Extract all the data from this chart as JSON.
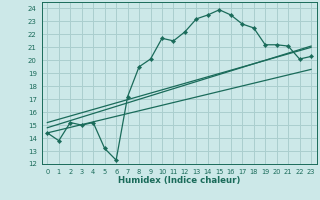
{
  "xlabel": "Humidex (Indice chaleur)",
  "bg_color": "#cce8e8",
  "grid_color": "#aacece",
  "line_color": "#1a6b5a",
  "xlim": [
    -0.5,
    23.5
  ],
  "ylim": [
    12,
    24.5
  ],
  "yticks": [
    12,
    13,
    14,
    15,
    16,
    17,
    18,
    19,
    20,
    21,
    22,
    23,
    24
  ],
  "xticks": [
    0,
    1,
    2,
    3,
    4,
    5,
    6,
    7,
    8,
    9,
    10,
    11,
    12,
    13,
    14,
    15,
    16,
    17,
    18,
    19,
    20,
    21,
    22,
    23
  ],
  "line1_x": [
    0,
    1,
    2,
    3,
    4,
    5,
    6,
    7,
    8,
    9,
    10,
    11,
    12,
    13,
    14,
    15,
    16,
    17,
    18,
    19,
    20,
    21,
    22,
    23
  ],
  "line1_y": [
    14.4,
    13.8,
    15.2,
    15.0,
    15.2,
    13.2,
    12.3,
    17.2,
    19.5,
    20.1,
    21.7,
    21.5,
    22.2,
    23.2,
    23.5,
    23.9,
    23.5,
    22.8,
    22.5,
    21.2,
    21.2,
    21.1,
    20.1,
    20.3
  ],
  "line2_x": [
    0,
    23
  ],
  "line2_y": [
    14.4,
    19.3
  ],
  "line3_x": [
    0,
    23
  ],
  "line3_y": [
    14.8,
    21.1
  ],
  "line4_x": [
    0,
    23
  ],
  "line4_y": [
    15.2,
    21.0
  ]
}
